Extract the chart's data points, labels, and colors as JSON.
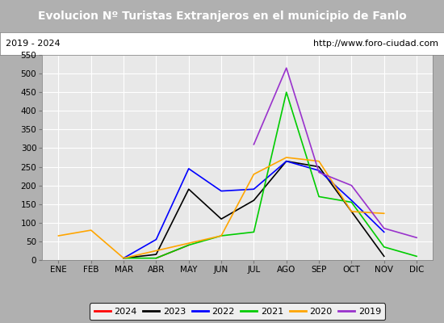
{
  "title": "Evolucion Nº Turistas Extranjeros en el municipio de Fanlo",
  "subtitle_left": "2019 - 2024",
  "subtitle_right": "http://www.foro-ciudad.com",
  "title_bg_color": "#4472c4",
  "title_text_color": "#ffffff",
  "subtitle_bg_color": "#ffffff",
  "subtitle_text_color": "#000000",
  "plot_bg_color": "#e8e8e8",
  "grid_color": "#ffffff",
  "fig_bg_color": "#b0b0b0",
  "months": [
    "ENE",
    "FEB",
    "MAR",
    "ABR",
    "MAY",
    "JUN",
    "JUL",
    "AGO",
    "SEP",
    "OCT",
    "NOV",
    "DIC"
  ],
  "ylim": [
    0,
    550
  ],
  "yticks": [
    0,
    50,
    100,
    150,
    200,
    250,
    300,
    350,
    400,
    450,
    500,
    550
  ],
  "series": {
    "2024": {
      "color": "#ff0000",
      "data": [
        null,
        null,
        null,
        5,
        40,
        null,
        null,
        null,
        null,
        null,
        null,
        null
      ]
    },
    "2023": {
      "color": "#000000",
      "data": [
        null,
        null,
        5,
        15,
        190,
        110,
        160,
        265,
        250,
        130,
        10,
        null
      ]
    },
    "2022": {
      "color": "#0000ff",
      "data": [
        null,
        null,
        5,
        55,
        245,
        185,
        190,
        265,
        240,
        160,
        75,
        null
      ]
    },
    "2021": {
      "color": "#00cc00",
      "data": [
        null,
        null,
        5,
        5,
        40,
        65,
        75,
        450,
        170,
        155,
        35,
        10
      ]
    },
    "2020": {
      "color": "#ffa500",
      "data": [
        65,
        80,
        5,
        null,
        null,
        65,
        230,
        275,
        265,
        130,
        125,
        null
      ]
    },
    "2019": {
      "color": "#9932cc",
      "data": [
        null,
        null,
        null,
        null,
        null,
        null,
        310,
        515,
        235,
        200,
        85,
        60
      ]
    }
  },
  "legend_order": [
    "2024",
    "2023",
    "2022",
    "2021",
    "2020",
    "2019"
  ],
  "legend_bg": "#ffffff",
  "legend_border": "#000000"
}
